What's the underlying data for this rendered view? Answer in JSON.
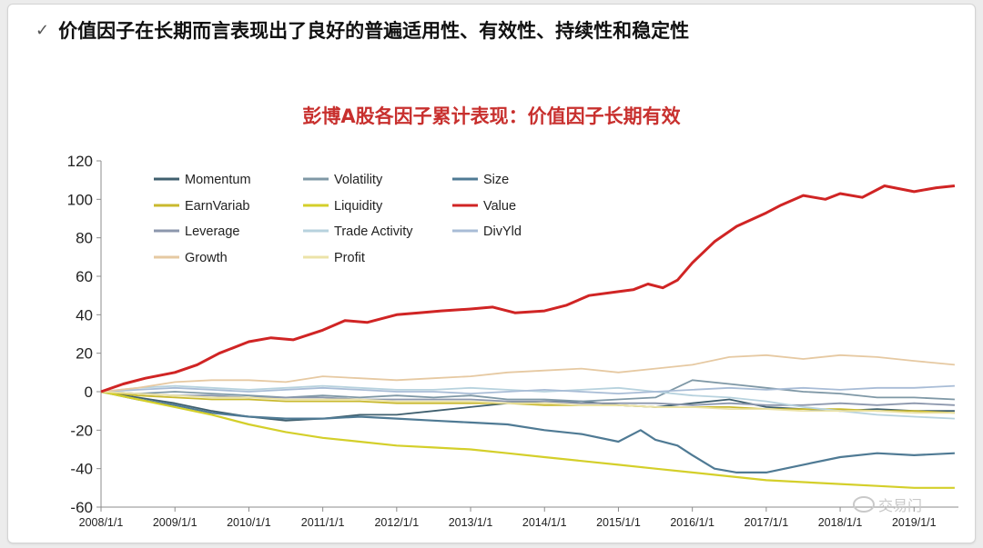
{
  "headline": "价值因子在长期而言表现出了良好的普遍适用性、有效性、持续性和稳定性",
  "watermark": "交易门",
  "chart_data": {
    "type": "line",
    "title": "彭博A股各因子累计表现：价值因子长期有效",
    "xlabel": "",
    "ylabel": "",
    "ylim": [
      -60,
      120
    ],
    "yticks": [
      -60,
      -40,
      -20,
      0,
      20,
      40,
      60,
      80,
      100,
      120
    ],
    "xlim": [
      2008,
      2019.6
    ],
    "xticks": [
      {
        "x": 2008,
        "label": "2008/1/1"
      },
      {
        "x": 2009,
        "label": "2009/1/1"
      },
      {
        "x": 2010,
        "label": "2010/1/1"
      },
      {
        "x": 2011,
        "label": "2011/1/1"
      },
      {
        "x": 2012,
        "label": "2012/1/1"
      },
      {
        "x": 2013,
        "label": "2013/1/1"
      },
      {
        "x": 2014,
        "label": "2014/1/1"
      },
      {
        "x": 2015,
        "label": "2015/1/1"
      },
      {
        "x": 2016,
        "label": "2016/1/1"
      },
      {
        "x": 2017,
        "label": "2017/1/1"
      },
      {
        "x": 2018,
        "label": "2018/1/1"
      },
      {
        "x": 2019,
        "label": "2019/1/1"
      }
    ],
    "grid": false,
    "legend_position": "top-left",
    "series": [
      {
        "name": "Momentum",
        "color": "#3f5f6e",
        "x": [
          2008,
          2008.5,
          2009,
          2009.5,
          2010,
          2010.5,
          2011,
          2011.5,
          2012,
          2012.5,
          2013,
          2013.5,
          2014,
          2014.5,
          2015,
          2015.5,
          2016,
          2016.5,
          2017,
          2017.5,
          2018,
          2018.5,
          2019,
          2019.55
        ],
        "y": [
          0,
          -3,
          -6,
          -10,
          -13,
          -15,
          -14,
          -12,
          -12,
          -10,
          -8,
          -6,
          -5,
          -5,
          -7,
          -8,
          -6,
          -4,
          -8,
          -9,
          -10,
          -9,
          -10,
          -10
        ]
      },
      {
        "name": "Volatility",
        "color": "#7f98a6",
        "x": [
          2008,
          2008.5,
          2009,
          2009.5,
          2010,
          2010.5,
          2011,
          2011.5,
          2012,
          2012.5,
          2013,
          2013.5,
          2014,
          2014.5,
          2015,
          2015.5,
          2016,
          2016.5,
          2017,
          2017.5,
          2018,
          2018.5,
          2019,
          2019.55
        ],
        "y": [
          0,
          -1,
          0,
          -1,
          -2,
          -3,
          -2,
          -3,
          -2,
          -3,
          -2,
          -4,
          -4,
          -5,
          -4,
          -3,
          6,
          4,
          2,
          0,
          -1,
          -3,
          -3,
          -4
        ]
      },
      {
        "name": "Size",
        "color": "#4f7a94",
        "x": [
          2008,
          2008.5,
          2009,
          2009.5,
          2010,
          2010.5,
          2011,
          2011.5,
          2012,
          2012.5,
          2013,
          2013.5,
          2014,
          2014.5,
          2015,
          2015.3,
          2015.5,
          2015.8,
          2016,
          2016.3,
          2016.6,
          2017,
          2017.5,
          2018,
          2018.5,
          2019,
          2019.55
        ],
        "y": [
          0,
          -4,
          -7,
          -11,
          -13,
          -14,
          -14,
          -13,
          -14,
          -15,
          -16,
          -17,
          -20,
          -22,
          -26,
          -20,
          -25,
          -28,
          -33,
          -40,
          -42,
          -42,
          -38,
          -34,
          -32,
          -33,
          -32
        ]
      },
      {
        "name": "EarnVariab",
        "color": "#c9b92e",
        "x": [
          2008,
          2008.5,
          2009,
          2009.5,
          2010,
          2010.5,
          2011,
          2011.5,
          2012,
          2012.5,
          2013,
          2013.5,
          2014,
          2014.5,
          2015,
          2015.5,
          2016,
          2016.5,
          2017,
          2017.5,
          2018,
          2018.5,
          2019,
          2019.55
        ],
        "y": [
          0,
          -2,
          -3,
          -4,
          -4,
          -5,
          -5,
          -5,
          -6,
          -6,
          -6,
          -6,
          -7,
          -7,
          -7,
          -8,
          -8,
          -8,
          -9,
          -9,
          -9,
          -10,
          -10,
          -11
        ]
      },
      {
        "name": "Liquidity",
        "color": "#d4cf2a",
        "x": [
          2008,
          2008.5,
          2009,
          2009.5,
          2010,
          2010.5,
          2011,
          2011.5,
          2012,
          2012.5,
          2013,
          2013.5,
          2014,
          2014.5,
          2015,
          2015.5,
          2016,
          2016.5,
          2017,
          2017.5,
          2018,
          2018.5,
          2019,
          2019.55
        ],
        "y": [
          0,
          -4,
          -8,
          -12,
          -17,
          -21,
          -24,
          -26,
          -28,
          -29,
          -30,
          -32,
          -34,
          -36,
          -38,
          -40,
          -42,
          -44,
          -46,
          -47,
          -48,
          -49,
          -50,
          -50
        ]
      },
      {
        "name": "Value",
        "color": "#d02424",
        "x": [
          2008,
          2008.3,
          2008.6,
          2009,
          2009.3,
          2009.6,
          2010,
          2010.3,
          2010.6,
          2011,
          2011.3,
          2011.6,
          2012,
          2012.3,
          2012.6,
          2013,
          2013.3,
          2013.6,
          2014,
          2014.3,
          2014.6,
          2015,
          2015.2,
          2015.4,
          2015.6,
          2015.8,
          2016,
          2016.3,
          2016.6,
          2017,
          2017.2,
          2017.5,
          2017.8,
          2018,
          2018.3,
          2018.6,
          2019,
          2019.3,
          2019.55
        ],
        "y": [
          0,
          4,
          7,
          10,
          14,
          20,
          26,
          28,
          27,
          32,
          37,
          36,
          40,
          41,
          42,
          43,
          44,
          41,
          42,
          45,
          50,
          52,
          53,
          56,
          54,
          58,
          67,
          78,
          86,
          93,
          97,
          102,
          100,
          103,
          101,
          107,
          104,
          106,
          107
        ]
      },
      {
        "name": "Leverage",
        "color": "#8c97ad",
        "x": [
          2008,
          2008.5,
          2009,
          2009.5,
          2010,
          2010.5,
          2011,
          2011.5,
          2012,
          2012.5,
          2013,
          2013.5,
          2014,
          2014.5,
          2015,
          2015.5,
          2016,
          2016.5,
          2017,
          2017.5,
          2018,
          2018.5,
          2019,
          2019.55
        ],
        "y": [
          0,
          -1,
          -2,
          -2,
          -3,
          -3,
          -3,
          -4,
          -4,
          -4,
          -4,
          -5,
          -5,
          -6,
          -6,
          -6,
          -7,
          -6,
          -7,
          -7,
          -6,
          -7,
          -6,
          -7
        ]
      },
      {
        "name": "Trade Activity",
        "color": "#b7d2de",
        "x": [
          2008,
          2008.5,
          2009,
          2009.5,
          2010,
          2010.5,
          2011,
          2011.5,
          2012,
          2012.5,
          2013,
          2013.5,
          2014,
          2014.5,
          2015,
          2015.5,
          2016,
          2016.5,
          2017,
          2017.5,
          2018,
          2018.5,
          2019,
          2019.55
        ],
        "y": [
          0,
          2,
          3,
          2,
          1,
          2,
          3,
          2,
          1,
          1,
          2,
          1,
          0,
          1,
          2,
          0,
          -2,
          -3,
          -5,
          -8,
          -10,
          -12,
          -13,
          -14
        ]
      },
      {
        "name": "DivYld",
        "color": "#a8bcd6",
        "x": [
          2008,
          2008.5,
          2009,
          2009.5,
          2010,
          2010.5,
          2011,
          2011.5,
          2012,
          2012.5,
          2013,
          2013.5,
          2014,
          2014.5,
          2015,
          2015.5,
          2016,
          2016.5,
          2017,
          2017.5,
          2018,
          2018.5,
          2019,
          2019.55
        ],
        "y": [
          0,
          1,
          2,
          1,
          0,
          1,
          2,
          1,
          0,
          0,
          -1,
          0,
          1,
          0,
          -1,
          0,
          1,
          2,
          1,
          2,
          1,
          2,
          2,
          3
        ]
      },
      {
        "name": "Growth",
        "color": "#e6c9a2",
        "x": [
          2008,
          2008.5,
          2009,
          2009.5,
          2010,
          2010.5,
          2011,
          2011.5,
          2012,
          2012.5,
          2013,
          2013.5,
          2014,
          2014.5,
          2015,
          2015.5,
          2016,
          2016.5,
          2017,
          2017.5,
          2018,
          2018.5,
          2019,
          2019.55
        ],
        "y": [
          0,
          2,
          5,
          6,
          6,
          5,
          8,
          7,
          6,
          7,
          8,
          10,
          11,
          12,
          10,
          12,
          14,
          18,
          19,
          17,
          19,
          18,
          16,
          14
        ]
      },
      {
        "name": "Profit",
        "color": "#ece3a8",
        "x": [
          2008,
          2008.5,
          2009,
          2009.5,
          2010,
          2010.5,
          2011,
          2011.5,
          2012,
          2012.5,
          2013,
          2013.5,
          2014,
          2014.5,
          2015,
          2015.5,
          2016,
          2016.5,
          2017,
          2017.5,
          2018,
          2018.5,
          2019,
          2019.55
        ],
        "y": [
          0,
          -1,
          -2,
          -3,
          -3,
          -4,
          -4,
          -4,
          -5,
          -5,
          -5,
          -6,
          -6,
          -7,
          -7,
          -8,
          -8,
          -9,
          -9,
          -10,
          -10,
          -10,
          -11,
          -11
        ]
      }
    ]
  }
}
